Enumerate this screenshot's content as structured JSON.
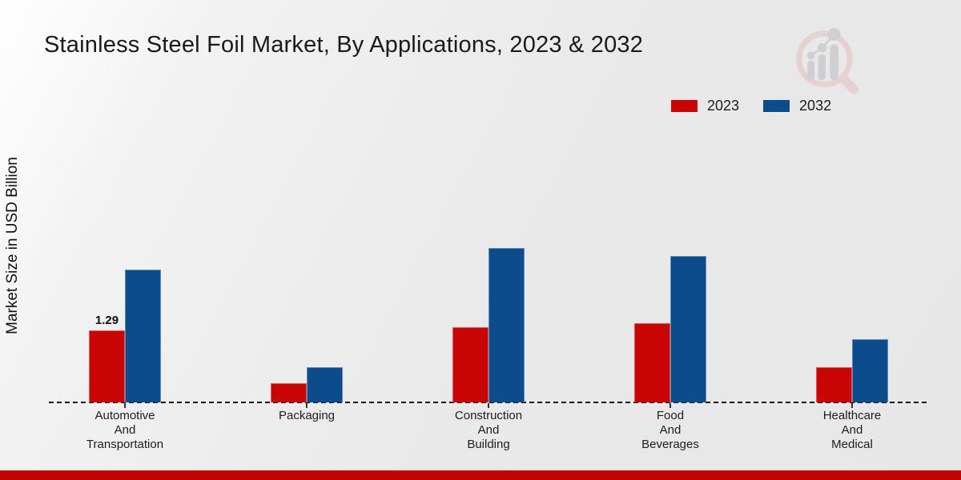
{
  "title": "Stainless Steel Foil Market, By Applications, 2023 & 2032",
  "ylabel": "Market Size in USD Billion",
  "legend": [
    {
      "label": "2023",
      "color": "#c80404"
    },
    {
      "label": "2032",
      "color": "#0d4c8c"
    }
  ],
  "logo": {
    "icon": "magnifier-bar-chart-logo"
  },
  "footer_bar_color": "#bf0303",
  "chart_data": {
    "type": "bar",
    "title": "Stainless Steel Foil Market, By Applications, 2023 & 2032",
    "xlabel": "",
    "ylabel": "Market Size in USD Billion",
    "categories": [
      "Automotive And Transportation",
      "Packaging",
      "Construction And Building",
      "Food And Beverages",
      "Healthcare And Medical"
    ],
    "tick_label_lines": [
      [
        "Automotive",
        "And",
        "Transportation"
      ],
      [
        "Packaging"
      ],
      [
        "Construction",
        "And",
        "Building"
      ],
      [
        "Food",
        "And",
        "Beverages"
      ],
      [
        "Healthcare",
        "And",
        "Medical"
      ]
    ],
    "series": [
      {
        "name": "2023",
        "color": "#c80404",
        "values": [
          1.29,
          0.34,
          1.35,
          1.42,
          0.63
        ]
      },
      {
        "name": "2032",
        "color": "#0d4c8c",
        "values": [
          2.38,
          0.63,
          2.77,
          2.62,
          1.13
        ]
      }
    ],
    "data_labels": [
      {
        "series": "2023",
        "category": "Automotive And Transportation",
        "text": "1.29"
      }
    ],
    "ylim": [
      0,
      3.2
    ],
    "grid": false,
    "axis_line_style": "dashed",
    "legend_position": "upper right"
  }
}
